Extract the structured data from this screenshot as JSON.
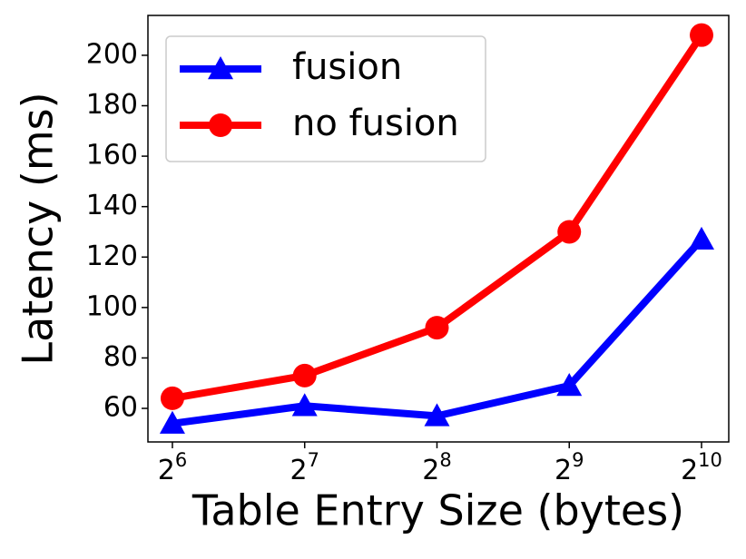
{
  "chart_data": {
    "type": "line",
    "x_label": "Table Entry Size (bytes)",
    "y_label": "Latency (ms)",
    "x": [
      64,
      128,
      256,
      512,
      1024
    ],
    "series": [
      {
        "name": "fusion",
        "color": "#0000ff",
        "marker": "triangle",
        "values": [
          54,
          61,
          57,
          69,
          127
        ]
      },
      {
        "name": "no fusion",
        "color": "#ff0000",
        "marker": "circle",
        "values": [
          64,
          73,
          92,
          130,
          208
        ]
      }
    ],
    "xscale": "log2",
    "xlim": [
      56.3,
      1181
    ],
    "xticks": [
      {
        "value": 64,
        "label": "2",
        "exponent": "6"
      },
      {
        "value": 128,
        "label": "2",
        "exponent": "7"
      },
      {
        "value": 256,
        "label": "2",
        "exponent": "8"
      },
      {
        "value": 512,
        "label": "2",
        "exponent": "9"
      },
      {
        "value": 1024,
        "label": "2",
        "exponent": "10"
      }
    ],
    "ylim": [
      46.7,
      215.8
    ],
    "yticks": [
      60,
      80,
      100,
      120,
      140,
      160,
      180,
      200
    ],
    "grid": false,
    "legend": "upper left"
  }
}
